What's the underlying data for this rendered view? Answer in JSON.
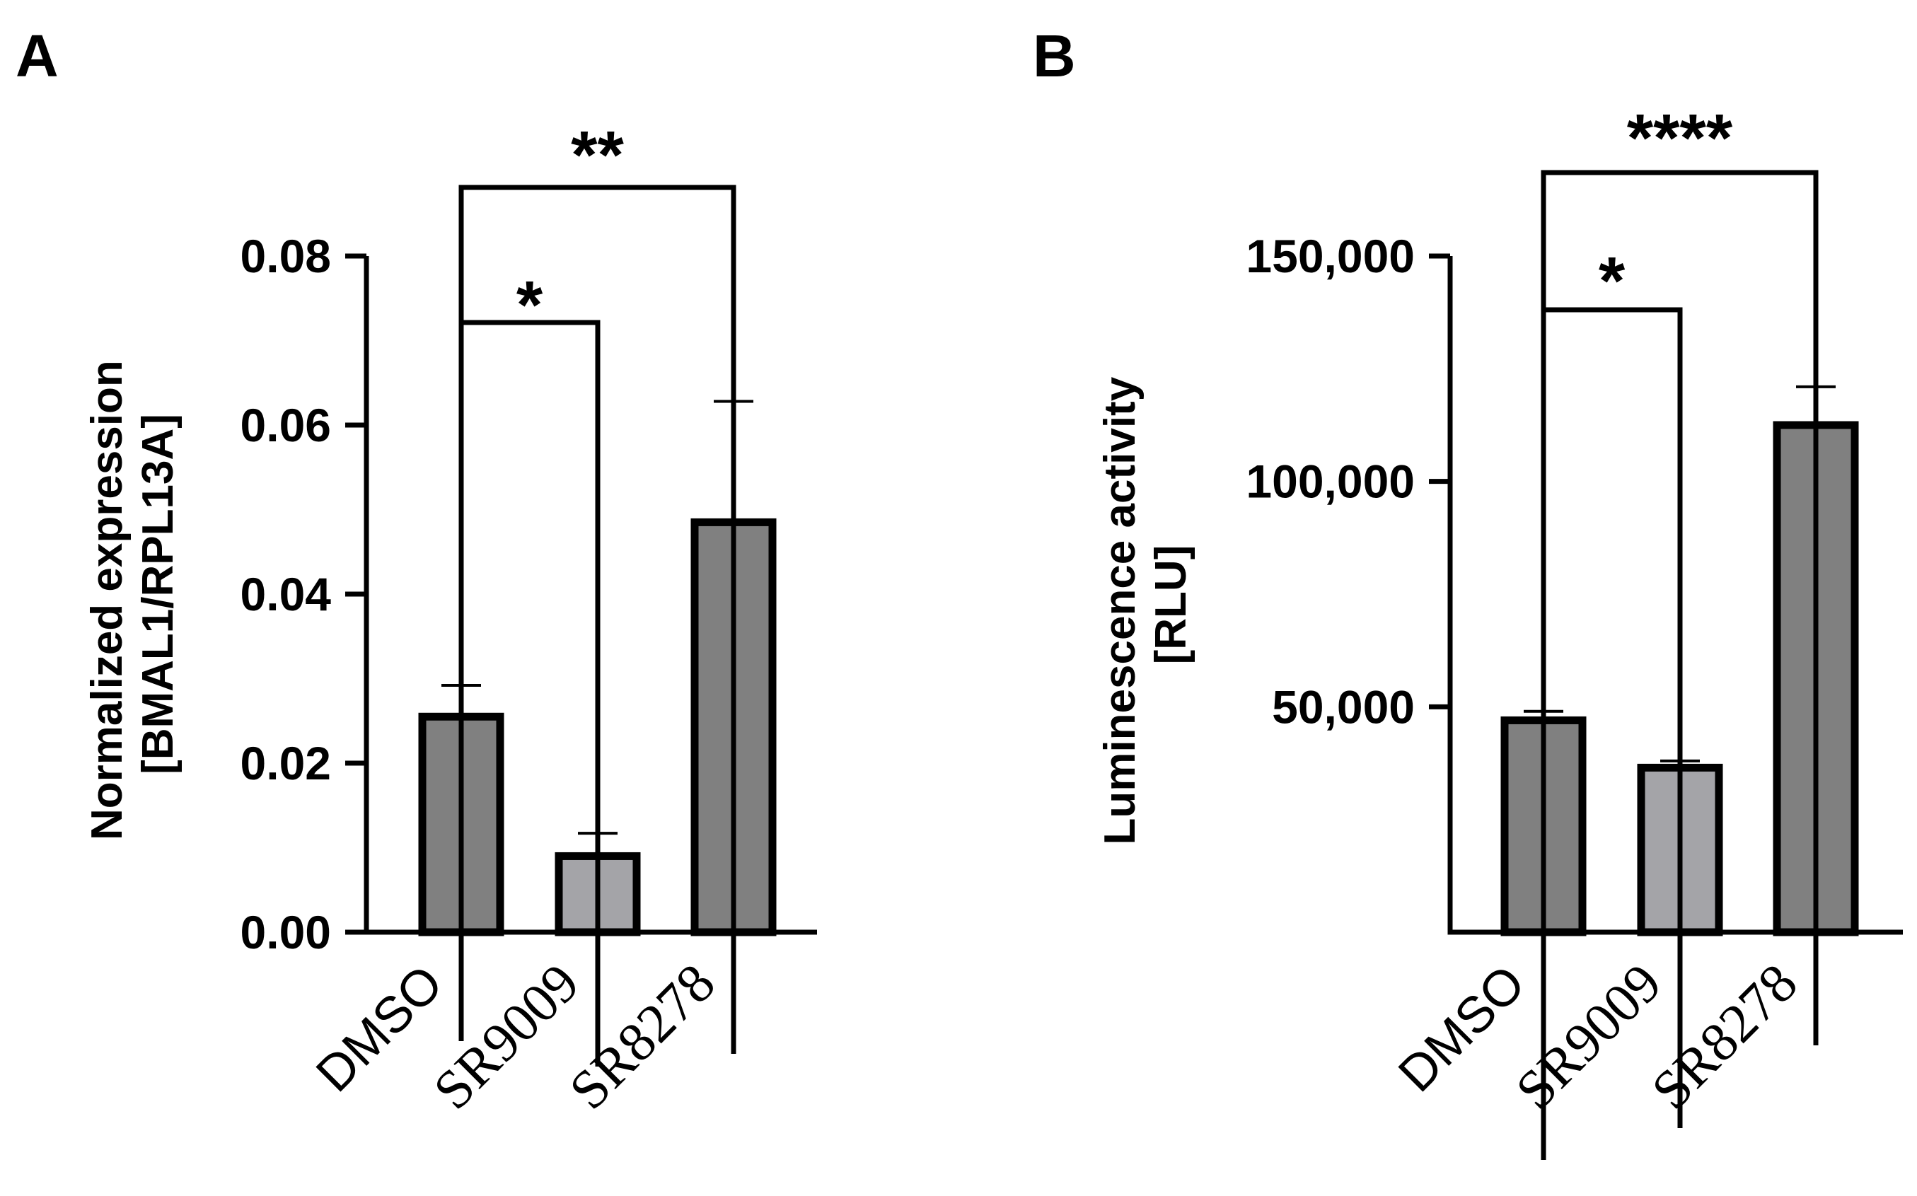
{
  "chart_data": [
    {
      "panel": "A",
      "type": "bar",
      "title": "",
      "xlabel": "",
      "ylabel_lines": [
        "Normalized expression",
        "[BMAL1/RPL13A]"
      ],
      "categories": [
        "DMSO",
        "SR9009",
        "SR8278"
      ],
      "values": [
        0.0255,
        0.009,
        0.0485
      ],
      "error": [
        0.0037,
        0.0027,
        0.0143
      ],
      "ylim": [
        0,
        0.08
      ],
      "yticks": [
        0.0,
        0.02,
        0.04,
        0.06,
        0.08
      ],
      "ytick_labels": [
        "0.00",
        "0.02",
        "0.04",
        "0.06",
        "0.08"
      ],
      "bar_colors": [
        "#808080",
        "#a4a4a8",
        "#808080"
      ],
      "significance": [
        {
          "from": "DMSO",
          "to": "SR9009",
          "label": "*"
        },
        {
          "from": "DMSO",
          "to": "SR8278",
          "label": "**"
        }
      ],
      "grid": false,
      "legend": "none"
    },
    {
      "panel": "B",
      "type": "bar",
      "title": "",
      "xlabel": "",
      "ylabel_lines": [
        "Luminescence activity",
        "[RLU]"
      ],
      "categories": [
        "DMSO",
        "SR9009",
        "SR8278"
      ],
      "values": [
        47000,
        36500,
        112500
      ],
      "error": [
        2000,
        1500,
        8500
      ],
      "ylim": [
        0,
        150000
      ],
      "yticks": [
        50000,
        100000,
        150000
      ],
      "ytick_labels": [
        "50,000",
        "100,000",
        "150,000"
      ],
      "bar_colors": [
        "#808080",
        "#a4a4a8",
        "#808080"
      ],
      "significance": [
        {
          "from": "DMSO",
          "to": "SR9009",
          "label": "*"
        },
        {
          "from": "DMSO",
          "to": "SR8278",
          "label": "****"
        }
      ],
      "grid": false,
      "legend": "none"
    }
  ]
}
